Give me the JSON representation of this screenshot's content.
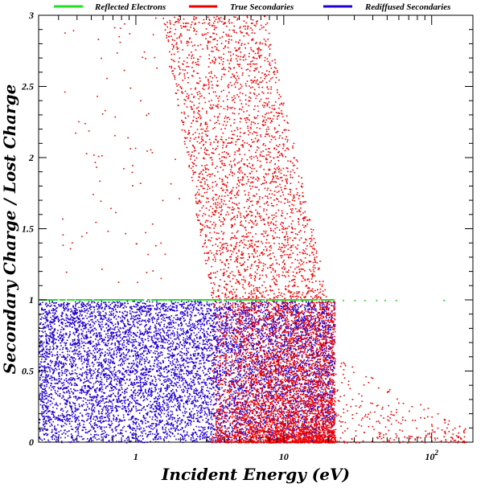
{
  "chart_data": {
    "type": "scatter",
    "title": "",
    "xlabel": "Incident Energy (eV)",
    "ylabel": "Secondary Charge / Lost Charge",
    "x_scale": "log",
    "xlim": [
      0.22,
      190
    ],
    "ylim": [
      0,
      3
    ],
    "x_ticks": [
      {
        "value": 1,
        "label": "1"
      },
      {
        "value": 10,
        "label": "10"
      },
      {
        "value": 100,
        "label": "10",
        "sup": "2"
      }
    ],
    "y_ticks": [
      {
        "value": 0,
        "label": "0"
      },
      {
        "value": 0.5,
        "label": "0.5"
      },
      {
        "value": 1,
        "label": "1"
      },
      {
        "value": 1.5,
        "label": "1.5"
      },
      {
        "value": 2,
        "label": "2"
      },
      {
        "value": 2.5,
        "label": "2.5"
      },
      {
        "value": 3,
        "label": "3"
      }
    ],
    "legend_position": "top",
    "grid": false,
    "series": [
      {
        "name": "Reflected Electrons",
        "color": "#22dd22",
        "points": [
          [
            0.22,
            1.0
          ],
          [
            0.3,
            1.0
          ],
          [
            0.45,
            1.0
          ],
          [
            0.7,
            1.0
          ],
          [
            1.0,
            1.0
          ],
          [
            1.5,
            1.0
          ],
          [
            2.2,
            1.0
          ],
          [
            3.3,
            1.0
          ],
          [
            5,
            1.0
          ],
          [
            7,
            1.0
          ],
          [
            10,
            1.0
          ],
          [
            14,
            1.0
          ],
          [
            20,
            1.0
          ],
          [
            25,
            0.995
          ],
          [
            30,
            0.995
          ],
          [
            35,
            0.995
          ],
          [
            42,
            0.995
          ],
          [
            48,
            0.995
          ],
          [
            57,
            0.995
          ],
          [
            120,
            0.995
          ]
        ]
      },
      {
        "name": "True Secondaries",
        "color": "#ee0000",
        "description": "dense cloud 3-22 eV, ratio 0-3; sparse tail to ~170 eV below ~0.3; sparse points 0.3-3 eV at high ratio",
        "regions": [
          {
            "x_range": [
              3.5,
              22
            ],
            "y_range": [
              0,
              1.0
            ],
            "density": "very high"
          },
          {
            "x_range": [
              2.0,
              20
            ],
            "y_range": [
              1.0,
              3.0
            ],
            "density": "high"
          },
          {
            "x_range": [
              0.3,
              2.0
            ],
            "y_range": [
              1.0,
              3.0
            ],
            "density": "low"
          },
          {
            "x_range": [
              22,
              170
            ],
            "y_range": [
              0,
              0.35
            ],
            "density": "low"
          }
        ]
      },
      {
        "name": "Rediffused Secondaries",
        "color": "#2200cc",
        "description": "dense band across 0.22-22 eV for ratio 0-1.0",
        "regions": [
          {
            "x_range": [
              0.22,
              22
            ],
            "y_range": [
              0,
              1.0
            ],
            "density": "very high"
          }
        ]
      }
    ]
  }
}
